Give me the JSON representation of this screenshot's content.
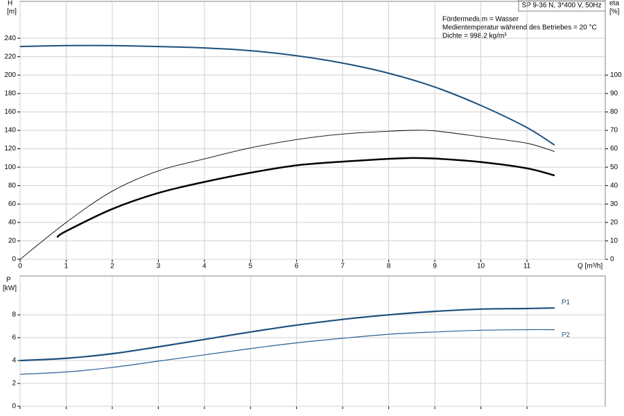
{
  "chart_data": [
    {
      "type": "line",
      "title": "SP 9-36 N, 3*400 V, 50Hz",
      "annotations": [
        "Fördermedium = Wasser",
        "Medientemperatur während des Betriebes = 20 °C",
        "Dichte = 998.2 kg/m³"
      ],
      "ylabel": "H",
      "yunit": "[m]",
      "y2label": "eta",
      "y2unit": "[%]",
      "xlabel": "Q [m³/h]",
      "xlim": [
        0,
        12.7
      ],
      "xticks": [
        0,
        1,
        2,
        3,
        4,
        5,
        6,
        7,
        8,
        9,
        10,
        11
      ],
      "ylim": [
        0,
        280
      ],
      "yticks": [
        0,
        20,
        40,
        60,
        80,
        100,
        120,
        140,
        160,
        180,
        200,
        220,
        240
      ],
      "y2lim": [
        0,
        140
      ],
      "y2ticks": [
        0,
        10,
        20,
        30,
        40,
        50,
        60,
        70,
        80,
        90,
        100
      ],
      "grid": true,
      "series": [
        {
          "color": "#1d4f7c",
          "axis": "y",
          "x": [
            0,
            1,
            2,
            3,
            4,
            5,
            6,
            7,
            8,
            9,
            10,
            11,
            11.6
          ],
          "values": [
            231,
            232,
            232,
            231,
            229.5,
            226.5,
            221,
            213,
            202,
            187,
            167,
            143,
            124
          ]
        },
        {
          "color": "#000000",
          "axis": "y2",
          "x": [
            0,
            1,
            2,
            3,
            4,
            5,
            6,
            7,
            8,
            8.5,
            9,
            10,
            11,
            11.6
          ],
          "values": [
            0,
            20,
            37,
            48,
            54.5,
            60.5,
            65,
            68,
            69.5,
            70,
            69.7,
            66.5,
            63,
            58.5
          ]
        },
        {
          "color": "#000000",
          "axis": "y2",
          "x": [
            0.8,
            1,
            2,
            3,
            4,
            5,
            6,
            7,
            8,
            8.5,
            9,
            10,
            11,
            11.6
          ],
          "values": [
            12,
            15.3,
            27.3,
            36,
            42,
            47,
            51,
            53,
            54.5,
            55,
            54.7,
            52.8,
            49.4,
            45.5
          ]
        }
      ]
    },
    {
      "type": "line",
      "ylabel": "P",
      "yunit": "[kW]",
      "xlim": [
        0,
        12.7
      ],
      "xticks": [
        0,
        1,
        2,
        3,
        4,
        5,
        6,
        7,
        8,
        9,
        10,
        11
      ],
      "ylim": [
        0,
        11.4
      ],
      "yticks": [
        0,
        2,
        4,
        6,
        8
      ],
      "grid": true,
      "series": [
        {
          "name": "P1",
          "color": "#1d4f7c",
          "x": [
            0,
            1,
            2,
            3,
            4,
            5,
            6,
            7,
            8,
            9,
            10,
            11,
            11.6
          ],
          "values": [
            4.0,
            4.2,
            4.6,
            5.2,
            5.85,
            6.5,
            7.1,
            7.6,
            8.0,
            8.3,
            8.5,
            8.55,
            8.6
          ]
        },
        {
          "name": "P2",
          "color": "#2a6096",
          "x": [
            0,
            1,
            2,
            3,
            4,
            5,
            6,
            7,
            8,
            9,
            10,
            11,
            11.6
          ],
          "values": [
            2.8,
            3.0,
            3.4,
            3.95,
            4.5,
            5.05,
            5.55,
            5.95,
            6.3,
            6.5,
            6.65,
            6.7,
            6.7
          ]
        }
      ]
    }
  ]
}
